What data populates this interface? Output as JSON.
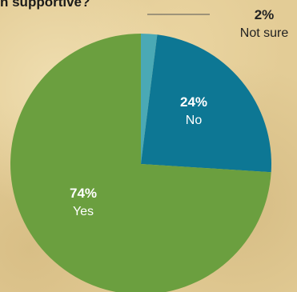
{
  "title": "n supportive?",
  "chart_data": {
    "type": "pie",
    "title": "n supportive?",
    "slices": [
      {
        "label": "Not sure",
        "value": 2,
        "display": "2%",
        "color": "#4aa9b5"
      },
      {
        "label": "No",
        "value": 24,
        "display": "24%",
        "color": "#0d7794"
      },
      {
        "label": "Yes",
        "value": 74,
        "display": "74%",
        "color": "#6b9f3f"
      }
    ]
  }
}
